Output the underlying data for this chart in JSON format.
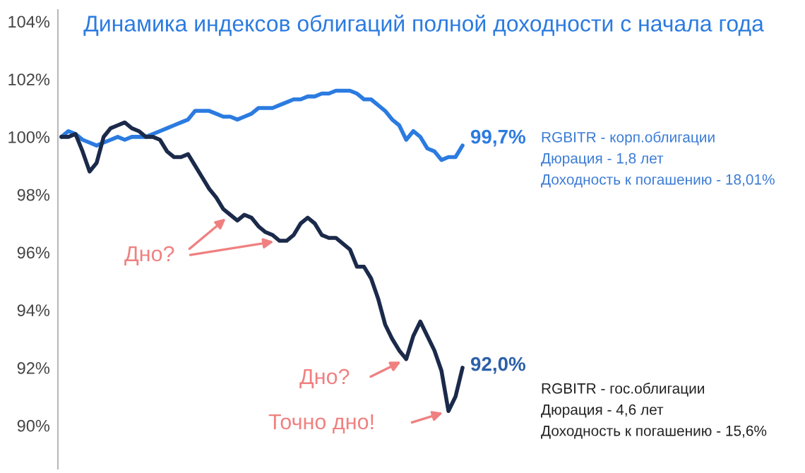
{
  "chart_data": {
    "type": "line",
    "title": "Динамика индексов облигаций полной доходности с начала года",
    "categories": [
      null,
      null,
      null,
      null,
      null,
      null,
      null,
      null,
      null,
      null,
      null,
      null,
      null,
      null,
      null,
      null,
      null,
      null,
      null,
      null,
      null,
      null,
      null,
      null,
      null,
      null,
      null,
      null,
      null,
      null,
      null,
      null,
      null,
      null,
      null,
      null,
      null,
      null,
      null,
      null,
      null,
      null,
      null,
      null,
      null,
      null,
      null,
      null,
      null,
      null,
      null,
      null,
      null,
      null,
      null,
      null,
      null,
      null
    ],
    "series": [
      {
        "name": "RGBITR - корп.облигации",
        "color": "#2b7be0",
        "values": [
          100.0,
          100.2,
          100.1,
          99.9,
          99.8,
          99.7,
          99.8,
          99.9,
          100.0,
          99.9,
          100.0,
          100.0,
          100.0,
          100.1,
          100.2,
          100.3,
          100.4,
          100.5,
          100.6,
          100.9,
          100.9,
          100.9,
          100.8,
          100.7,
          100.7,
          100.6,
          100.7,
          100.8,
          101.0,
          101.0,
          101.0,
          101.1,
          101.2,
          101.3,
          101.3,
          101.4,
          101.4,
          101.5,
          101.5,
          101.6,
          101.6,
          101.6,
          101.5,
          101.3,
          101.3,
          101.1,
          100.9,
          100.6,
          100.4,
          99.9,
          100.2,
          100.0,
          99.6,
          99.5,
          99.2,
          99.3,
          99.3,
          99.7
        ]
      },
      {
        "name": "RGBITR - гос.облигации",
        "color": "#1b2a4a",
        "values": [
          100.0,
          100.0,
          100.1,
          99.5,
          98.8,
          99.1,
          100.0,
          100.3,
          100.4,
          100.5,
          100.3,
          100.2,
          100.0,
          100.0,
          99.9,
          99.5,
          99.3,
          99.3,
          99.4,
          99.0,
          98.6,
          98.2,
          97.9,
          97.5,
          97.3,
          97.1,
          97.3,
          97.2,
          96.9,
          96.7,
          96.6,
          96.4,
          96.4,
          96.6,
          97.0,
          97.2,
          97.0,
          96.6,
          96.5,
          96.5,
          96.3,
          96.1,
          95.5,
          95.5,
          95.1,
          94.4,
          93.5,
          93.0,
          92.6,
          92.3,
          93.1,
          93.6,
          93.1,
          92.6,
          91.9,
          90.5,
          91.0,
          92.0
        ]
      }
    ],
    "ylim": [
      88.5,
      104.4
    ],
    "yticks": [
      {
        "value": 90,
        "label": "90%"
      },
      {
        "value": 92,
        "label": "92%"
      },
      {
        "value": 94,
        "label": "94%"
      },
      {
        "value": 96,
        "label": "96%"
      },
      {
        "value": 98,
        "label": "98%"
      },
      {
        "value": 100,
        "label": "100%"
      },
      {
        "value": 102,
        "label": "102%"
      },
      {
        "value": 104,
        "label": "104%"
      }
    ],
    "grid": false,
    "legend": false,
    "annotations": [
      "99,7%",
      "Дюрация - 1,8 лет",
      "Доходность к погашению - 18,01%",
      "92,0%",
      "Дюрация - 4,6 лет",
      "Доходность к погашению - 15,6%",
      "Дно?",
      "Дно?",
      "Точно дно!"
    ]
  }
}
